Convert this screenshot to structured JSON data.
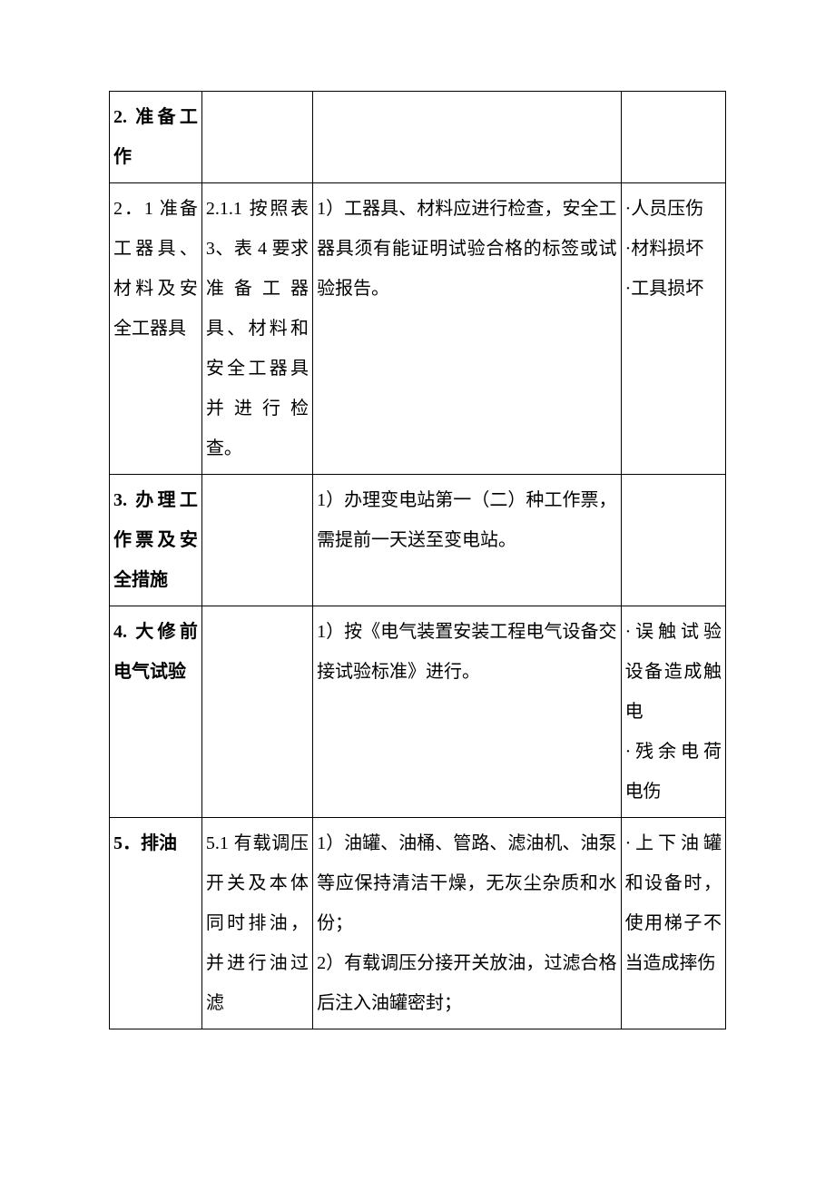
{
  "table": {
    "border_color": "#000000",
    "background_color": "#ffffff",
    "text_color": "#000000",
    "font_size": 20,
    "line_height": 2.2,
    "columns": [
      {
        "width_pct": 15
      },
      {
        "width_pct": 18
      },
      {
        "width_pct": 50
      },
      {
        "width_pct": 17
      }
    ],
    "rows": [
      {
        "cells": [
          {
            "text": "2. 准备工作",
            "bold": true
          },
          {
            "text": ""
          },
          {
            "text": ""
          },
          {
            "text": ""
          }
        ]
      },
      {
        "cells": [
          {
            "text": "2．1 准备工器具、材料及安全工器具",
            "bold": false
          },
          {
            "text": "2.1.1 按照表 3、表 4 要求准备工器具、材料和安全工器具并进行检查。",
            "bold": false
          },
          {
            "text": "1）工器具、材料应进行检查，安全工器具须有能证明试验合格的标签或试验报告。",
            "bold": false
          },
          {
            "text": "·人员压伤\n·材料损坏\n·工具损坏",
            "bold": false
          }
        ]
      },
      {
        "cells": [
          {
            "text": "3. 办理工作票及安全措施",
            "bold": true
          },
          {
            "text": ""
          },
          {
            "text": "1）办理变电站第一（二）种工作票，需提前一天送至变电站。",
            "bold": false
          },
          {
            "text": ""
          }
        ]
      },
      {
        "cells": [
          {
            "text": "4. 大修前电气试验",
            "bold": true
          },
          {
            "text": ""
          },
          {
            "text": "1）按《电气装置安装工程电气设备交接试验标准》进行。",
            "bold": false
          },
          {
            "text": "·误触试验设备造成触电\n·残余电荷电伤",
            "bold": false
          }
        ]
      },
      {
        "cells": [
          {
            "text": "5．排油",
            "bold": true
          },
          {
            "text": "5.1 有载调压开关及本体同时排油，并进行油过滤",
            "bold": false
          },
          {
            "text": "1）油罐、油桶、管路、滤油机、油泵等应保持清洁干燥，无灰尘杂质和水份；\n2）有载调压分接开关放油，过滤合格后注入油罐密封；",
            "bold": false
          },
          {
            "text": "·上下油罐和设备时，使用梯子不当造成摔伤",
            "bold": false
          }
        ]
      }
    ]
  }
}
